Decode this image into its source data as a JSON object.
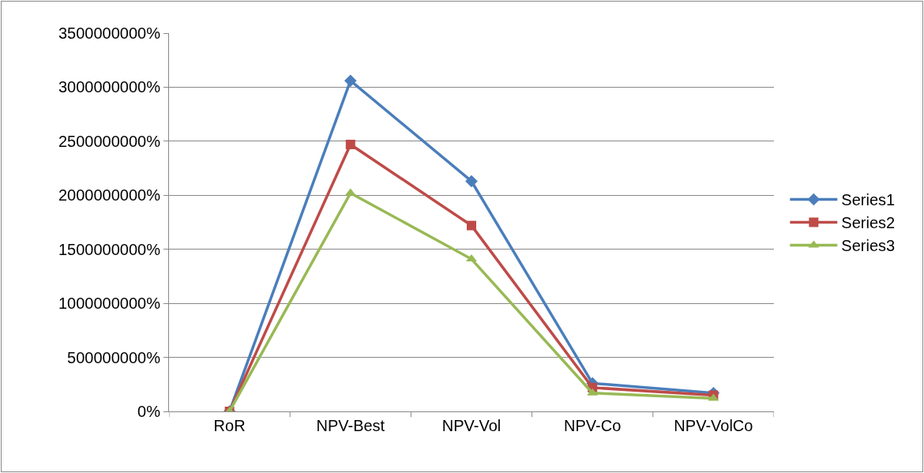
{
  "chart_data": {
    "type": "line",
    "categories": [
      "RoR",
      "NPV-Best",
      "NPV-Vol",
      "NPV-Co",
      "NPV-VolCo"
    ],
    "series": [
      {
        "name": "Series1",
        "color": "#4a7ebb",
        "marker": "diamond",
        "values": [
          0,
          3060000000,
          2130000000,
          260000000,
          170000000
        ]
      },
      {
        "name": "Series2",
        "color": "#be4b48",
        "marker": "square",
        "values": [
          0,
          2470000000,
          1720000000,
          220000000,
          150000000
        ]
      },
      {
        "name": "Series3",
        "color": "#98b954",
        "marker": "triangle",
        "values": [
          0,
          2020000000,
          1410000000,
          170000000,
          120000000
        ]
      }
    ],
    "ylim": [
      0,
      3500000000
    ],
    "yticks": [
      {
        "value": 0,
        "label": "0%"
      },
      {
        "value": 500000000,
        "label": "500000000%"
      },
      {
        "value": 1000000000,
        "label": "1000000000%"
      },
      {
        "value": 1500000000,
        "label": "1500000000%"
      },
      {
        "value": 2000000000,
        "label": "2000000000%"
      },
      {
        "value": 2500000000,
        "label": "2500000000%"
      },
      {
        "value": 3000000000,
        "label": "3000000000%"
      },
      {
        "value": 3500000000,
        "label": "3500000000%"
      }
    ],
    "grid": "y",
    "legend": "right",
    "line_style": "solid"
  }
}
